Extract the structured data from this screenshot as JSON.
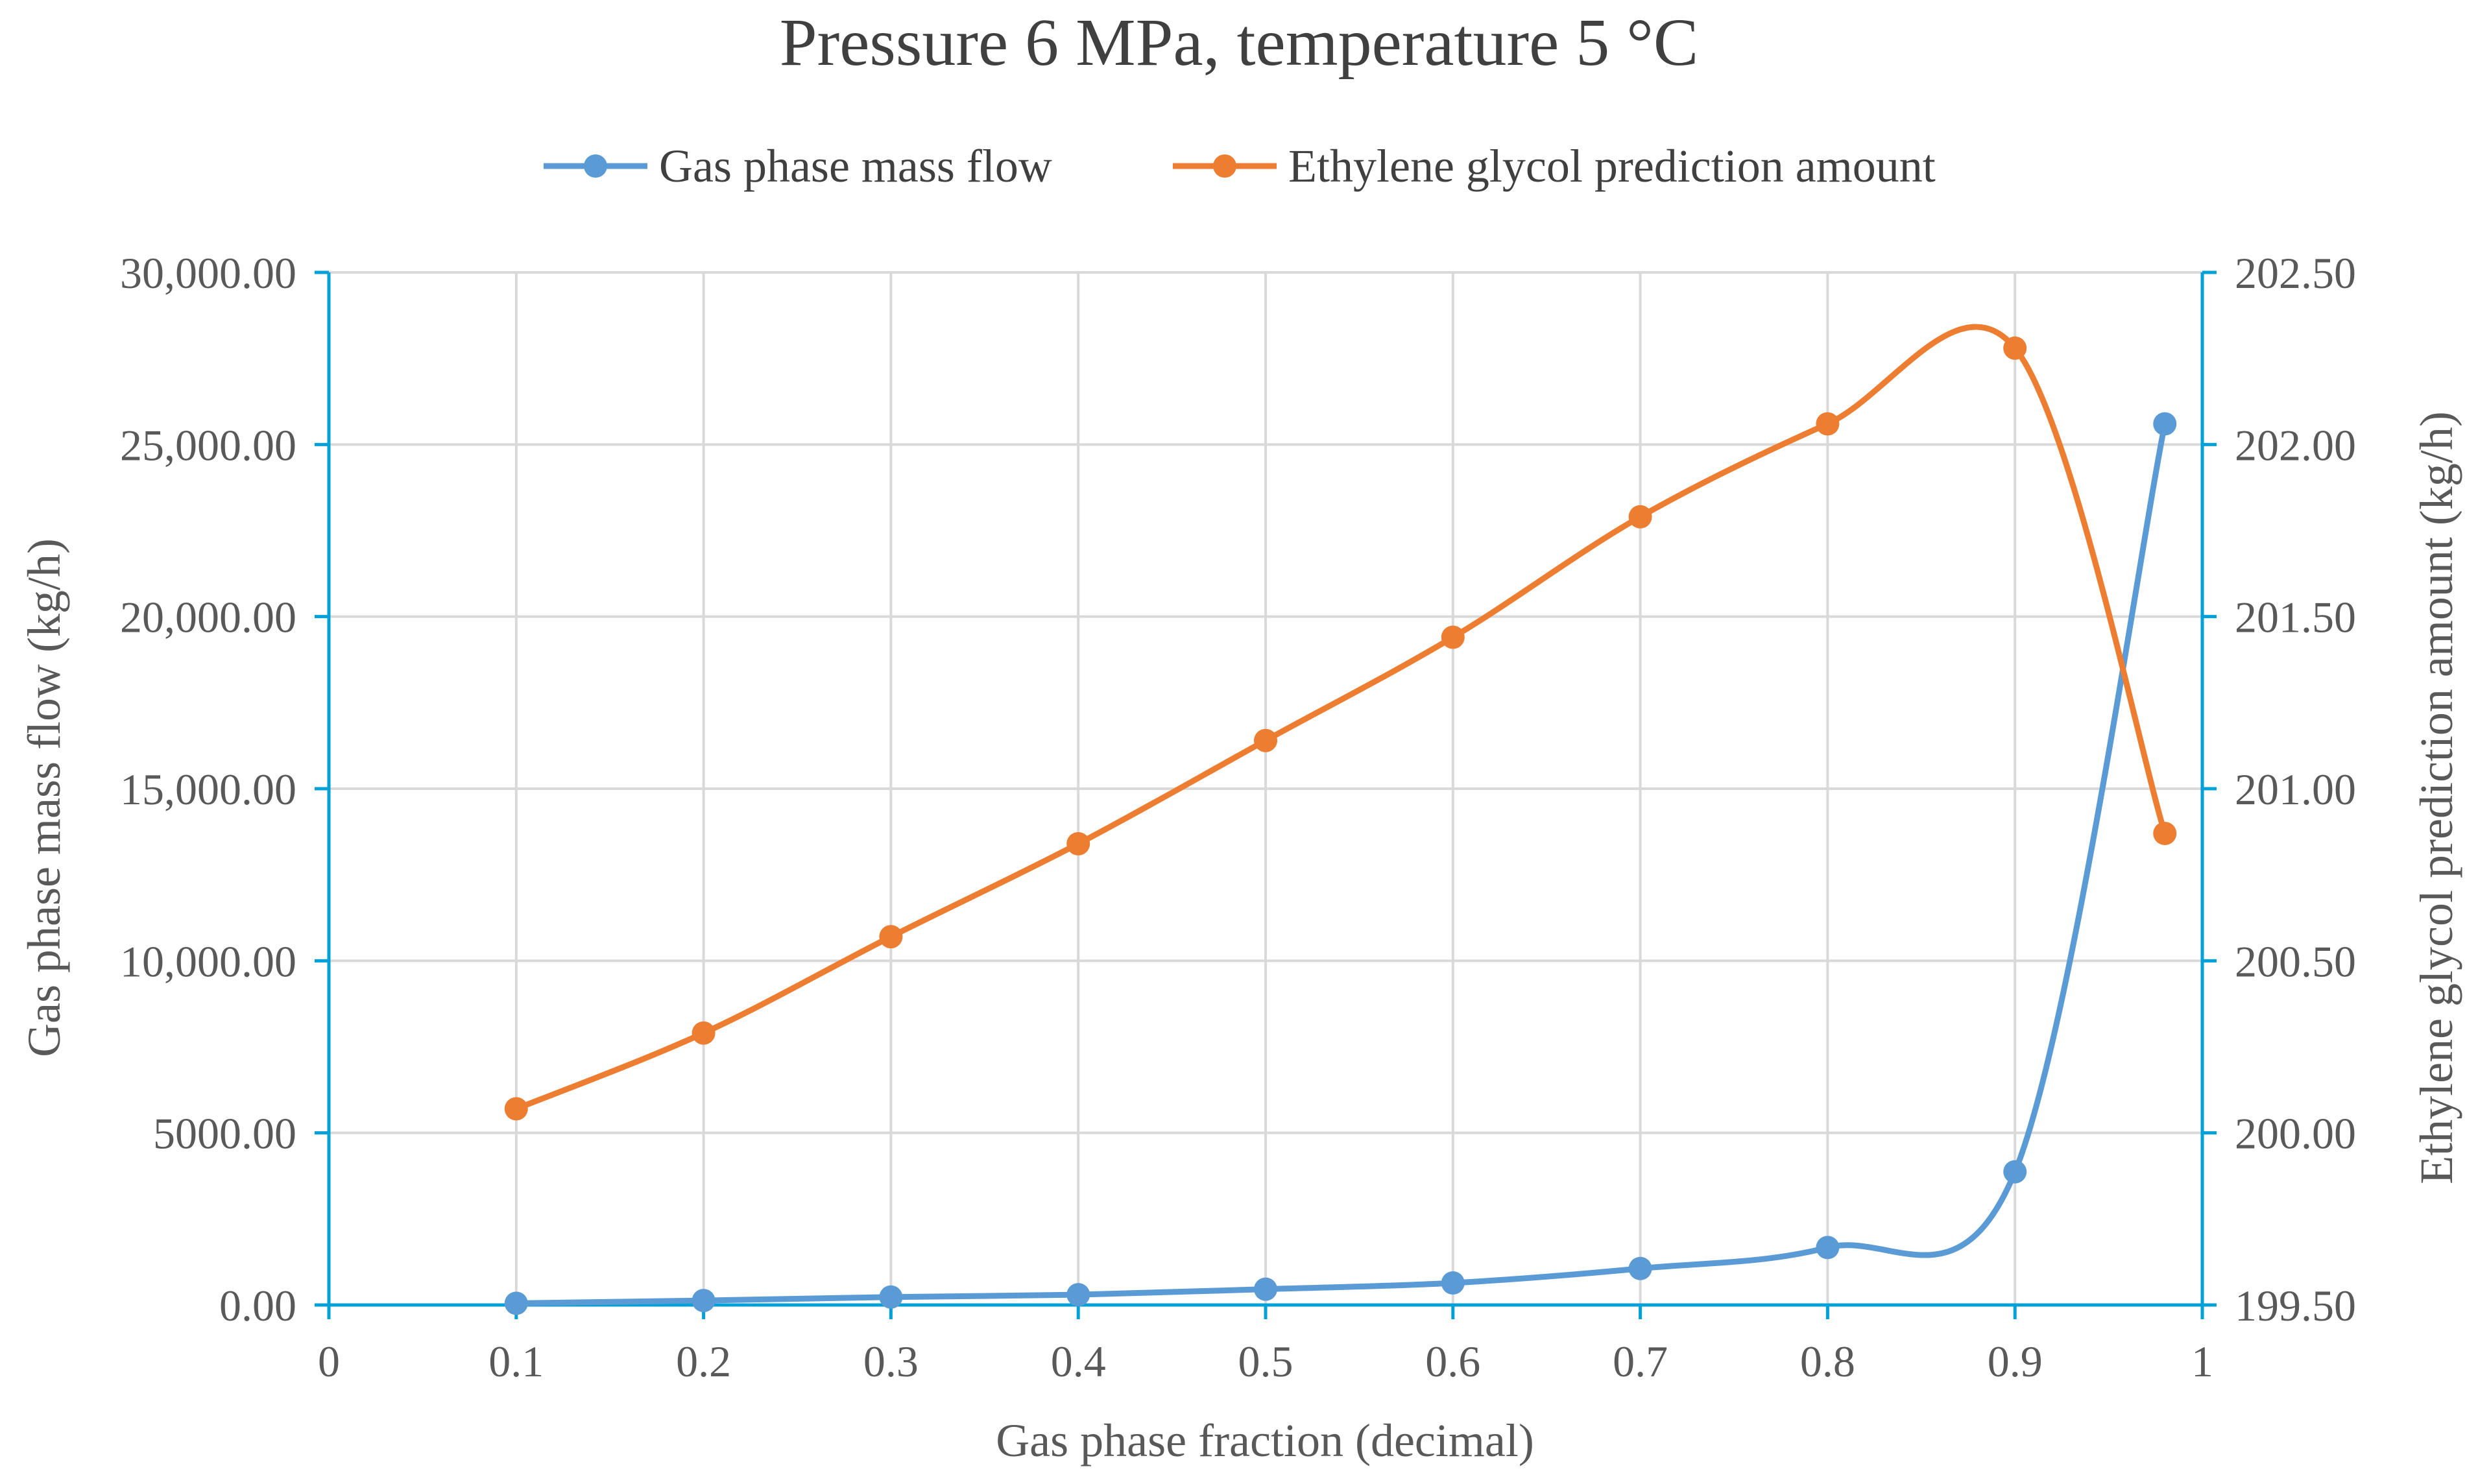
{
  "chart_data": {
    "type": "line",
    "title": "Pressure 6 MPa, temperature 5 °C",
    "xlabel": "Gas phase fraction (decimal)",
    "ylabel": "Gas phase mass flow  (kg/h)",
    "y2label": "Ethylene glycol prediction amount (kg/h)",
    "xlim": [
      0,
      1
    ],
    "ylim": [
      0,
      30000
    ],
    "y2lim": [
      199.5,
      202.5
    ],
    "x_ticks": [
      "0",
      "0.1",
      "0.2",
      "0.3",
      "0.4",
      "0.5",
      "0.6",
      "0.7",
      "0.8",
      "0.9",
      "1"
    ],
    "y_ticks": [
      "0.00",
      "5000.00",
      "10,000.00",
      "15,000.00",
      "20,000.00",
      "25,000.00",
      "30,000.00"
    ],
    "y2_ticks": [
      "199.50",
      "200.00",
      "200.50",
      "201.00",
      "201.50",
      "202.00",
      "202.50"
    ],
    "grid": true,
    "legend_position": "top",
    "series": [
      {
        "name": "Gas phase mass flow",
        "axis": "left",
        "color": "#5b9bd5",
        "x": [
          0.1,
          0.2,
          0.3,
          0.4,
          0.5,
          0.6,
          0.7,
          0.8,
          0.9,
          0.98
        ],
        "values": [
          50,
          130,
          230,
          300,
          460,
          640,
          1060,
          1670,
          3870,
          25600
        ]
      },
      {
        "name": "Ethylene glycol prediction amount",
        "axis": "right",
        "color": "#ed7d31",
        "x": [
          0.1,
          0.2,
          0.3,
          0.4,
          0.5,
          0.6,
          0.7,
          0.8,
          0.9,
          0.98
        ],
        "values": [
          200.07,
          200.29,
          200.57,
          200.84,
          201.14,
          201.44,
          201.79,
          202.06,
          202.28,
          200.87
        ]
      }
    ]
  }
}
